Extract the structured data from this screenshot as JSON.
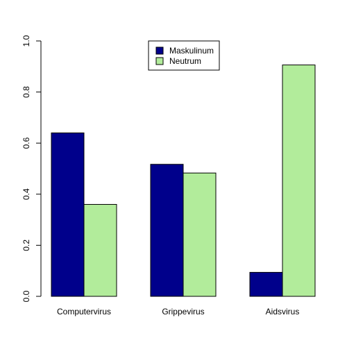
{
  "chart_data": {
    "type": "bar",
    "title": "",
    "xlabel": "",
    "ylabel": "",
    "categories": [
      "Computervirus",
      "Grippevirus",
      "Aidsvirus"
    ],
    "series": [
      {
        "name": "Maskulinum",
        "values": [
          0.64,
          0.517,
          0.094
        ],
        "color": "#00008B"
      },
      {
        "name": "Neutrum",
        "values": [
          0.36,
          0.483,
          0.906
        ],
        "color": "#B2EC9B"
      }
    ],
    "ylim": [
      0,
      1
    ],
    "yticks": [
      "0.0",
      "0.2",
      "0.4",
      "0.6",
      "0.8",
      "1.0"
    ],
    "grid": false,
    "legend_position": "top-center",
    "bar_mode": "grouped"
  }
}
